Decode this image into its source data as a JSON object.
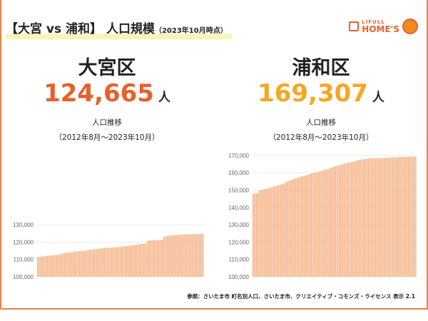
{
  "header": {
    "title": "【大宮 vs 浦和】 人口規模",
    "title_note": "（2023年10月時点）",
    "logo_line1": "LIFULL",
    "logo_line2": "HOME'S"
  },
  "districts": [
    {
      "name": "大宮区",
      "population": "124,665",
      "unit": "人",
      "color": "#e8602c",
      "chart_title": "人口推移",
      "chart_range": "（2012年8月～2023年10月）"
    },
    {
      "name": "浦和区",
      "population": "169,307",
      "unit": "人",
      "color": "#f5a623",
      "chart_title": "人口推移",
      "chart_range": "（2012年8月～2023年10月）"
    }
  ],
  "footer": {
    "source": "参照：さいたま市 町名別人口、さいたま市、クリエイティブ・コモンズ・ライセンス 表示 2.1"
  },
  "chart_data": [
    {
      "type": "bar",
      "title": "人口推移",
      "x_range": [
        "2012-08",
        "2023-10"
      ],
      "bar_color": "#f4b183",
      "grid": true,
      "ylim": [
        100000,
        130000
      ],
      "yticks": [
        "100,000",
        "110,000",
        "120,000",
        "130,000"
      ],
      "values": [
        111500,
        111500,
        111600,
        111600,
        111700,
        111800,
        111900,
        112000,
        112100,
        112200,
        112200,
        112300,
        112300,
        112400,
        112400,
        112500,
        112600,
        112800,
        113000,
        113200,
        113400,
        113600,
        113700,
        113800,
        113900,
        114000,
        114000,
        114100,
        114200,
        114400,
        114500,
        114600,
        114700,
        114800,
        114800,
        114900,
        114900,
        115000,
        115000,
        115100,
        115200,
        115400,
        115500,
        115600,
        115700,
        115800,
        115800,
        115900,
        116000,
        116100,
        116200,
        116300,
        116400,
        116500,
        116600,
        116600,
        116700,
        116700,
        116800,
        116800,
        116900,
        116900,
        117000,
        117000,
        117000,
        117100,
        117200,
        117300,
        117400,
        117500,
        117600,
        117700,
        117800,
        117800,
        117900,
        118000,
        118100,
        118200,
        118300,
        118400,
        118500,
        118600,
        118700,
        118800,
        118900,
        119000,
        119100,
        119200,
        119300,
        120800,
        120900,
        121000,
        121000,
        121000,
        121100,
        121100,
        121100,
        121100,
        121200,
        121200,
        121200,
        121200,
        123000,
        123200,
        123400,
        123500,
        123600,
        123700,
        123800,
        123900,
        124000,
        124000,
        124000,
        124100,
        124200,
        124200,
        124300,
        124300,
        124400,
        124400,
        124500,
        124500,
        124500,
        124600,
        124600,
        124600,
        124600,
        124600,
        124600,
        124600,
        124600,
        124700,
        124700,
        124700,
        124665
      ]
    },
    {
      "type": "bar",
      "title": "人口推移",
      "x_range": [
        "2012-08",
        "2023-10"
      ],
      "bar_color": "#f4b183",
      "grid": true,
      "ylim": [
        100000,
        170000
      ],
      "yticks": [
        "100,000",
        "110,000",
        "120,000",
        "130,000",
        "140,000",
        "150,000",
        "160,000",
        "170,000"
      ],
      "values": [
        148000,
        148000,
        148100,
        148100,
        148200,
        149800,
        150000,
        150200,
        150300,
        150500,
        150600,
        150800,
        151000,
        151200,
        151400,
        151600,
        151800,
        152000,
        152200,
        152400,
        152600,
        152800,
        153000,
        153200,
        153400,
        153600,
        154000,
        154400,
        154800,
        155200,
        155500,
        155800,
        156000,
        156200,
        156500,
        156800,
        157000,
        157200,
        157400,
        157600,
        157800,
        158000,
        158200,
        158400,
        158600,
        158800,
        159000,
        159300,
        159600,
        159800,
        160000,
        160100,
        160200,
        160400,
        160600,
        160800,
        161000,
        161200,
        161400,
        161600,
        161800,
        162000,
        162200,
        162400,
        162700,
        163000,
        163300,
        163600,
        163800,
        164000,
        164200,
        164400,
        164600,
        164800,
        165000,
        165200,
        165400,
        165600,
        165800,
        166000,
        166100,
        166200,
        166300,
        166500,
        166700,
        166900,
        167100,
        167300,
        167500,
        167600,
        167700,
        167800,
        167900,
        168000,
        168100,
        168200,
        168200,
        168300,
        168300,
        168300,
        168400,
        168400,
        168400,
        168400,
        168500,
        168500,
        168500,
        168500,
        168600,
        168600,
        168600,
        168700,
        168700,
        168800,
        168800,
        168900,
        168900,
        169000,
        169000,
        169000,
        169100,
        169100,
        169100,
        169200,
        169200,
        169200,
        169200,
        169200,
        169300,
        169300,
        169300,
        169300,
        169300,
        169300,
        169307
      ]
    }
  ]
}
